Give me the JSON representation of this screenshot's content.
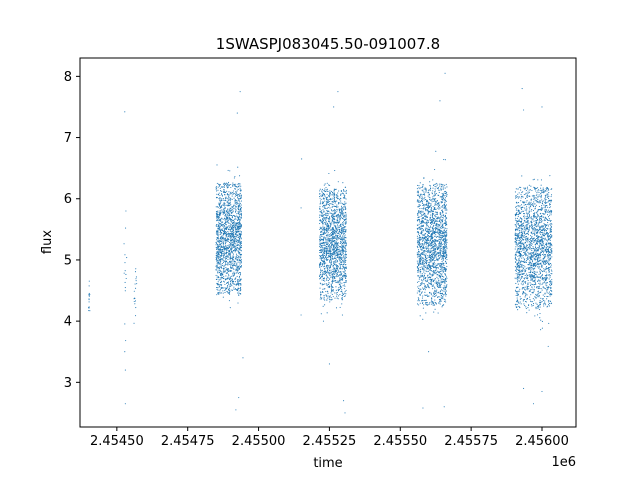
{
  "chart_data": {
    "type": "scatter",
    "title": "1SWASPJ083045.50-091007.8",
    "xlabel": "time",
    "ylabel": "flux",
    "x_offset_label": "1e6",
    "xlim": [
      2.45437,
      2.45612
    ],
    "ylim": [
      2.27,
      8.3
    ],
    "x_ticks": [
      2.4545,
      2.45475,
      2.455,
      2.45525,
      2.4555,
      2.45575,
      2.456
    ],
    "x_tick_labels": [
      "2.45450",
      "2.45475",
      "2.45500",
      "2.45525",
      "2.45550",
      "2.45575",
      "2.45600"
    ],
    "y_ticks": [
      3,
      4,
      5,
      6,
      7,
      8
    ],
    "y_tick_labels": [
      "3",
      "4",
      "5",
      "6",
      "7",
      "8"
    ],
    "grid": false,
    "legend": "none",
    "marker_color": "#1f77b4",
    "series": [
      {
        "clusters": [
          {
            "x_range": [
              2.4544,
              2.454405
            ],
            "y_center": 4.3,
            "y_spread": 0.22,
            "count": 16
          },
          {
            "x_range": [
              2.454525,
              2.454535
            ],
            "y_center": 4.6,
            "y_spread": 0.6,
            "count": 14
          },
          {
            "x_range": [
              2.45456,
              2.45457
            ],
            "y_center": 4.3,
            "y_spread": 0.35,
            "count": 18
          },
          {
            "x_range": [
              2.45485,
              2.45494
            ],
            "y_center": 5.35,
            "y_spread": 0.55,
            "count": 1600
          },
          {
            "x_range": [
              2.455215,
              2.45531
            ],
            "y_center": 5.25,
            "y_spread": 0.55,
            "count": 1600
          },
          {
            "x_range": [
              2.45556,
              2.455665
            ],
            "y_center": 5.25,
            "y_spread": 0.6,
            "count": 1800
          },
          {
            "x_range": [
              2.455905,
              2.456035
            ],
            "y_center": 5.2,
            "y_spread": 0.6,
            "count": 1900
          }
        ],
        "outliers": [
          [
            2.454528,
            7.42
          ],
          [
            2.454532,
            5.8
          ],
          [
            2.454528,
            3.5
          ],
          [
            2.45453,
            3.2
          ],
          [
            2.45453,
            2.65
          ],
          [
            2.454925,
            7.4
          ],
          [
            2.454935,
            7.75
          ],
          [
            2.45493,
            2.75
          ],
          [
            2.45492,
            2.55
          ],
          [
            2.454945,
            3.4
          ],
          [
            2.455152,
            6.65
          ],
          [
            2.45515,
            4.1
          ],
          [
            2.45515,
            5.85
          ],
          [
            2.455265,
            7.5
          ],
          [
            2.45528,
            7.75
          ],
          [
            2.4553,
            2.7
          ],
          [
            2.455305,
            2.5
          ],
          [
            2.45525,
            3.3
          ],
          [
            2.45564,
            7.6
          ],
          [
            2.455658,
            8.05
          ],
          [
            2.455655,
            2.6
          ],
          [
            2.45558,
            2.58
          ],
          [
            2.4556,
            3.5
          ],
          [
            2.45593,
            7.8
          ],
          [
            2.455935,
            7.45
          ],
          [
            2.455935,
            2.9
          ],
          [
            2.45597,
            2.65
          ],
          [
            2.456,
            7.5
          ],
          [
            2.456,
            2.85
          ]
        ]
      }
    ]
  }
}
